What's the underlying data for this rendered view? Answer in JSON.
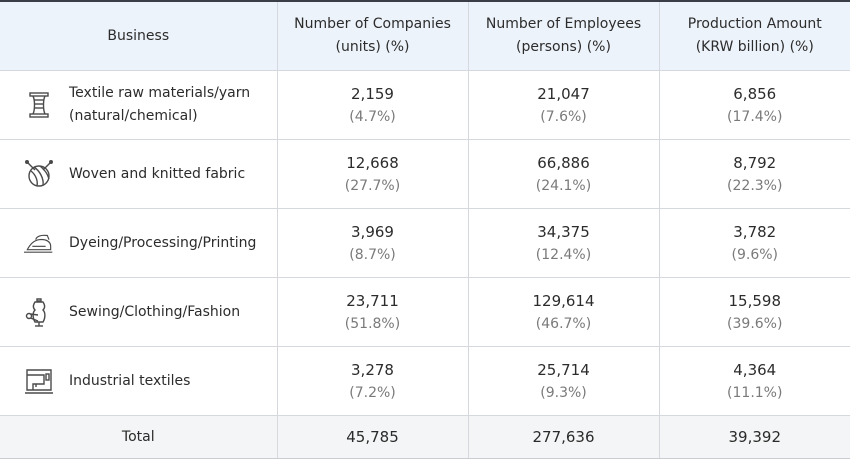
{
  "headers": {
    "business": "Business",
    "companies": [
      "Number of Companies",
      "(units) (%)"
    ],
    "employees": [
      "Number of Employees",
      "(persons) (%)"
    ],
    "production": [
      "Production Amount",
      "(KRW billion) (%)"
    ]
  },
  "rows": [
    {
      "icon": "yarn-spool-icon",
      "label_lines": [
        "Textile raw materials/yarn",
        "(natural/chemical)"
      ],
      "companies": "2,159",
      "companies_pct": "(4.7%)",
      "employees": "21,047",
      "employees_pct": "(7.6%)",
      "production": "6,856",
      "production_pct": "(17.4%)"
    },
    {
      "icon": "yarn-ball-icon",
      "label_lines": [
        "Woven and knitted fabric"
      ],
      "companies": "12,668",
      "companies_pct": "(27.7%)",
      "employees": "66,886",
      "employees_pct": "(24.1%)",
      "production": "8,792",
      "production_pct": "(22.3%)"
    },
    {
      "icon": "iron-icon",
      "label_lines": [
        "Dyeing/Processing/Printing"
      ],
      "companies": "3,969",
      "companies_pct": "(8.7%)",
      "employees": "34,375",
      "employees_pct": "(12.4%)",
      "production": "3,782",
      "production_pct": "(9.6%)"
    },
    {
      "icon": "dress-form-icon",
      "label_lines": [
        "Sewing/Clothing/Fashion"
      ],
      "companies": "23,711",
      "companies_pct": "(51.8%)",
      "employees": "129,614",
      "employees_pct": "(46.7%)",
      "production": "15,598",
      "production_pct": "(39.6%)"
    },
    {
      "icon": "sewing-machine-icon",
      "label_lines": [
        "Industrial textiles"
      ],
      "companies": "3,278",
      "companies_pct": "(7.2%)",
      "employees": "25,714",
      "employees_pct": "(9.3%)",
      "production": "4,364",
      "production_pct": "(11.1%)"
    }
  ],
  "total": {
    "label": "Total",
    "companies": "45,785",
    "employees": "277,636",
    "production": "39,392"
  }
}
